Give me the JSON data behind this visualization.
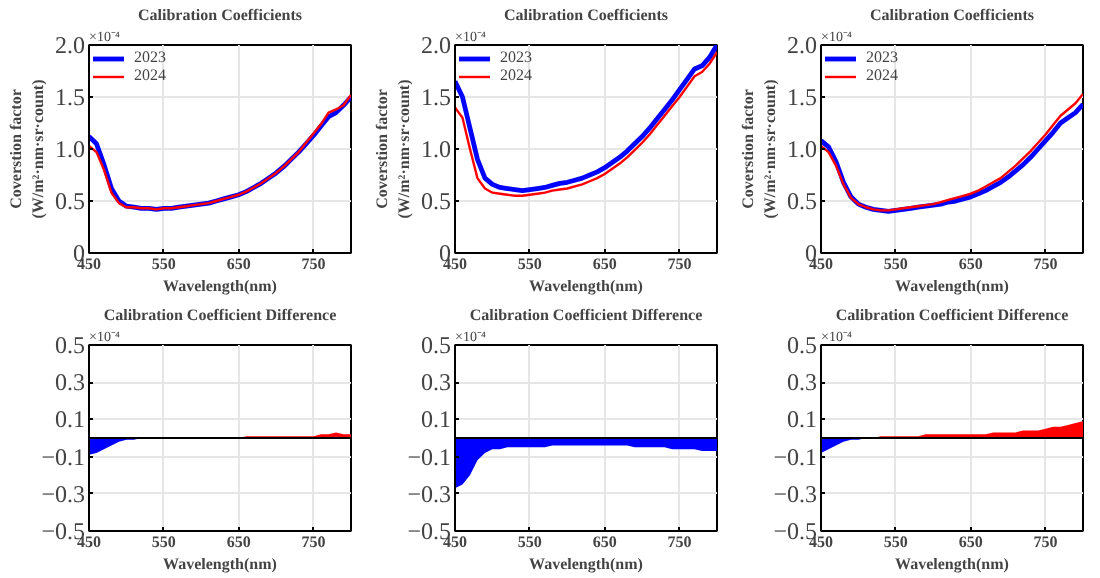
{
  "chart_data": [
    {
      "type": "line",
      "title": "Calibration Coefficients",
      "xlabel": "Wavelength(nm)",
      "ylabel": "Coverstion factor\n(W/m²·nm·sr·count)",
      "annotations": [
        "×10⁻⁴"
      ],
      "x": [
        450,
        460,
        470,
        480,
        490,
        500,
        510,
        520,
        530,
        540,
        550,
        560,
        570,
        580,
        590,
        600,
        610,
        620,
        630,
        640,
        650,
        660,
        670,
        680,
        690,
        700,
        710,
        720,
        730,
        740,
        750,
        760,
        770,
        780,
        790,
        800
      ],
      "series": [
        {
          "name": "2023",
          "color": "#0000ff",
          "values": [
            1.12,
            1.05,
            0.85,
            0.62,
            0.5,
            0.45,
            0.44,
            0.43,
            0.43,
            0.42,
            0.43,
            0.43,
            0.44,
            0.45,
            0.46,
            0.47,
            0.48,
            0.5,
            0.52,
            0.54,
            0.56,
            0.59,
            0.63,
            0.67,
            0.72,
            0.77,
            0.83,
            0.9,
            0.97,
            1.05,
            1.13,
            1.22,
            1.31,
            1.35,
            1.42,
            1.5
          ]
        },
        {
          "name": "2024",
          "color": "#ff0000",
          "values": [
            1.03,
            0.97,
            0.8,
            0.58,
            0.48,
            0.44,
            0.44,
            0.43,
            0.43,
            0.42,
            0.43,
            0.43,
            0.44,
            0.45,
            0.46,
            0.47,
            0.48,
            0.5,
            0.52,
            0.54,
            0.56,
            0.59,
            0.63,
            0.67,
            0.72,
            0.77,
            0.83,
            0.9,
            0.97,
            1.06,
            1.15,
            1.24,
            1.35,
            1.38,
            1.42,
            1.52
          ]
        }
      ],
      "xlim": [
        450,
        800
      ],
      "ylim": [
        0,
        2
      ],
      "xticks": [
        450,
        550,
        650,
        750
      ],
      "yticks": [
        0,
        0.5,
        {
          "value": 1,
          "label": "1.0"
        },
        1.5,
        {
          "value": 2,
          "label": "2.0"
        }
      ],
      "grid": true,
      "legend": "top left"
    },
    {
      "type": "line",
      "title": "Calibration Coefficients",
      "xlabel": "Wavelength(nm)",
      "ylabel": "Coverstion factor\n(W/m²·nm·sr·count)",
      "annotations": [
        "×10⁻⁴"
      ],
      "x": [
        450,
        460,
        470,
        480,
        490,
        500,
        510,
        520,
        530,
        540,
        550,
        560,
        570,
        580,
        590,
        600,
        610,
        620,
        630,
        640,
        650,
        660,
        670,
        680,
        690,
        700,
        710,
        720,
        730,
        740,
        750,
        760,
        770,
        780,
        790,
        800
      ],
      "series": [
        {
          "name": "2023",
          "color": "#0000ff",
          "values": [
            1.65,
            1.5,
            1.2,
            0.9,
            0.72,
            0.66,
            0.63,
            0.62,
            0.61,
            0.6,
            0.61,
            0.62,
            0.63,
            0.65,
            0.67,
            0.68,
            0.7,
            0.72,
            0.75,
            0.78,
            0.82,
            0.87,
            0.92,
            0.98,
            1.05,
            1.12,
            1.2,
            1.29,
            1.38,
            1.47,
            1.57,
            1.67,
            1.77,
            1.8,
            1.88,
            2.0
          ]
        },
        {
          "name": "2024",
          "color": "#ff0000",
          "values": [
            1.4,
            1.3,
            1.0,
            0.72,
            0.62,
            0.58,
            0.57,
            0.56,
            0.55,
            0.55,
            0.56,
            0.57,
            0.58,
            0.6,
            0.61,
            0.62,
            0.64,
            0.66,
            0.69,
            0.72,
            0.76,
            0.81,
            0.86,
            0.92,
            0.99,
            1.06,
            1.14,
            1.23,
            1.32,
            1.41,
            1.5,
            1.6,
            1.7,
            1.74,
            1.82,
            1.93
          ]
        }
      ],
      "xlim": [
        450,
        800
      ],
      "ylim": [
        0,
        2
      ],
      "xticks": [
        450,
        550,
        650,
        750
      ],
      "yticks": [
        0,
        0.5,
        {
          "value": 1,
          "label": "1.0"
        },
        1.5,
        {
          "value": 2,
          "label": "2.0"
        }
      ],
      "grid": true,
      "legend": "top left"
    },
    {
      "type": "line",
      "title": "Calibration Coefficients",
      "xlabel": "Wavelength(nm)",
      "ylabel": "Coverstion factor\n(W/m²·nm·sr·count)",
      "annotations": [
        "×10⁻⁴"
      ],
      "x": [
        450,
        460,
        470,
        480,
        490,
        500,
        510,
        520,
        530,
        540,
        550,
        560,
        570,
        580,
        590,
        600,
        610,
        620,
        630,
        640,
        650,
        660,
        670,
        680,
        690,
        700,
        710,
        720,
        730,
        740,
        750,
        760,
        770,
        780,
        790,
        800
      ],
      "series": [
        {
          "name": "2023",
          "color": "#0000ff",
          "values": [
            1.08,
            1.02,
            0.88,
            0.68,
            0.54,
            0.47,
            0.44,
            0.42,
            0.41,
            0.4,
            0.41,
            0.42,
            0.43,
            0.44,
            0.45,
            0.46,
            0.47,
            0.49,
            0.5,
            0.52,
            0.54,
            0.57,
            0.6,
            0.64,
            0.68,
            0.73,
            0.79,
            0.85,
            0.92,
            1.0,
            1.08,
            1.16,
            1.25,
            1.3,
            1.35,
            1.43
          ]
        },
        {
          "name": "2024",
          "color": "#ff0000",
          "values": [
            1.03,
            0.97,
            0.84,
            0.66,
            0.53,
            0.47,
            0.44,
            0.42,
            0.41,
            0.41,
            0.42,
            0.43,
            0.44,
            0.45,
            0.46,
            0.47,
            0.49,
            0.51,
            0.53,
            0.55,
            0.57,
            0.6,
            0.64,
            0.68,
            0.72,
            0.78,
            0.84,
            0.91,
            0.98,
            1.06,
            1.14,
            1.23,
            1.32,
            1.38,
            1.44,
            1.53
          ]
        }
      ],
      "xlim": [
        450,
        800
      ],
      "ylim": [
        0,
        2
      ],
      "xticks": [
        450,
        550,
        650,
        750
      ],
      "yticks": [
        0,
        0.5,
        {
          "value": 1,
          "label": "1.0"
        },
        1.5,
        {
          "value": 2,
          "label": "2.0"
        }
      ],
      "grid": true,
      "legend": "top left"
    },
    {
      "type": "area",
      "title": "Calibration Coefficient Difference",
      "xlabel": "Wavelength(nm)",
      "annotations": [
        "×10⁻⁴"
      ],
      "series": [
        {
          "color": "#0000ff",
          "x": [
            450,
            460,
            470,
            480,
            490,
            500,
            510,
            520
          ],
          "values": [
            -0.09,
            -0.08,
            -0.06,
            -0.04,
            -0.02,
            -0.01,
            -0.01,
            0
          ]
        },
        {
          "color": "#ff0000",
          "x": [
            610,
            620,
            630,
            640,
            650,
            660,
            670,
            680,
            690,
            700,
            710,
            720,
            730,
            740,
            750,
            760,
            770,
            780,
            790,
            800
          ],
          "values": [
            0,
            0,
            0,
            0,
            0,
            0.01,
            0.01,
            0.01,
            0.01,
            0.01,
            0.01,
            0.01,
            0.01,
            0.01,
            0.01,
            0.02,
            0.02,
            0.03,
            0.02,
            0.02
          ]
        }
      ],
      "xlim": [
        450,
        800
      ],
      "ylim": [
        -0.5,
        0.5
      ],
      "xticks": [
        450,
        550,
        650,
        750
      ],
      "yticks": [
        {
          "value": 0.5,
          "label": "0.5"
        },
        0.3,
        0.1,
        {
          "value": -0.1,
          "label": "−0.1"
        },
        {
          "value": -0.3,
          "label": "−0.3"
        },
        {
          "value": -0.5,
          "label": "−0.5"
        }
      ],
      "grid": true,
      "ref_lines": [
        {
          "axis": "y",
          "value": 0,
          "color": "#000000"
        }
      ]
    },
    {
      "type": "area",
      "title": "Calibration Coefficient Difference",
      "xlabel": "Wavelength(nm)",
      "annotations": [
        "×10⁻⁴"
      ],
      "series": [
        {
          "color": "#0000ff",
          "x": [
            450,
            460,
            470,
            480,
            490,
            500,
            510,
            520,
            530,
            540,
            550,
            560,
            570,
            580,
            590,
            600,
            610,
            620,
            630,
            640,
            650,
            660,
            670,
            680,
            690,
            700,
            710,
            720,
            730,
            740,
            750,
            760,
            770,
            780,
            790,
            800
          ],
          "values": [
            -0.27,
            -0.25,
            -0.2,
            -0.12,
            -0.08,
            -0.06,
            -0.06,
            -0.05,
            -0.05,
            -0.05,
            -0.05,
            -0.05,
            -0.05,
            -0.04,
            -0.04,
            -0.04,
            -0.04,
            -0.04,
            -0.04,
            -0.04,
            -0.04,
            -0.04,
            -0.04,
            -0.04,
            -0.05,
            -0.05,
            -0.05,
            -0.05,
            -0.05,
            -0.06,
            -0.06,
            -0.06,
            -0.06,
            -0.07,
            -0.07,
            -0.07
          ]
        }
      ],
      "xlim": [
        450,
        800
      ],
      "ylim": [
        -0.5,
        0.5
      ],
      "xticks": [
        450,
        550,
        650,
        750
      ],
      "yticks": [
        {
          "value": 0.5,
          "label": "0.5"
        },
        0.3,
        0.1,
        {
          "value": -0.1,
          "label": "−0.1"
        },
        {
          "value": -0.3,
          "label": "−0.3"
        },
        {
          "value": -0.5,
          "label": "−0.5"
        }
      ],
      "grid": true,
      "ref_lines": [
        {
          "axis": "y",
          "value": 0,
          "color": "#000000"
        }
      ]
    },
    {
      "type": "area",
      "title": "Calibration Coefficient Difference",
      "xlabel": "Wavelength(nm)",
      "annotations": [
        "×10⁻⁴"
      ],
      "series": [
        {
          "color": "#0000ff",
          "x": [
            450,
            460,
            470,
            480,
            490,
            500,
            510
          ],
          "values": [
            -0.08,
            -0.06,
            -0.04,
            -0.02,
            -0.01,
            -0.01,
            0
          ]
        },
        {
          "color": "#ff0000",
          "x": [
            510,
            520,
            530,
            540,
            550,
            560,
            570,
            580,
            590,
            600,
            610,
            620,
            630,
            640,
            650,
            660,
            670,
            680,
            690,
            700,
            710,
            720,
            730,
            740,
            750,
            760,
            770,
            780,
            790,
            800
          ],
          "values": [
            0,
            0,
            0.01,
            0.01,
            0.01,
            0.01,
            0.01,
            0.01,
            0.02,
            0.02,
            0.02,
            0.02,
            0.02,
            0.02,
            0.02,
            0.02,
            0.02,
            0.03,
            0.03,
            0.03,
            0.03,
            0.04,
            0.04,
            0.04,
            0.05,
            0.06,
            0.06,
            0.07,
            0.08,
            0.09
          ]
        }
      ],
      "xlim": [
        450,
        800
      ],
      "ylim": [
        -0.5,
        0.5
      ],
      "xticks": [
        450,
        550,
        650,
        750
      ],
      "yticks": [
        {
          "value": 0.5,
          "label": "0.5"
        },
        0.3,
        0.1,
        {
          "value": -0.1,
          "label": "−0.1"
        },
        {
          "value": -0.3,
          "label": "−0.3"
        },
        {
          "value": -0.5,
          "label": "−0.5"
        }
      ],
      "grid": true,
      "ref_lines": [
        {
          "axis": "y",
          "value": 0,
          "color": "#000000"
        }
      ]
    }
  ]
}
